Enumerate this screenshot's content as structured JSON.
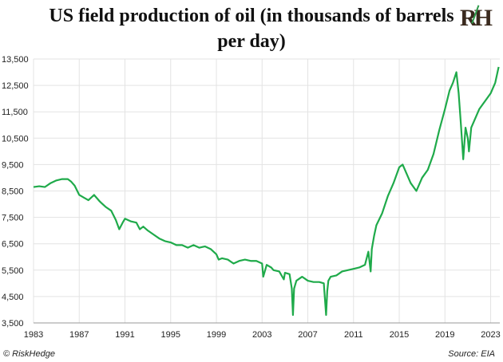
{
  "chart_data": {
    "type": "line",
    "title": "US field production of oil (in thousands of barrels per day)",
    "xlabel": "",
    "ylabel": "",
    "x_ticks": [
      "1983",
      "1987",
      "1991",
      "1995",
      "1999",
      "2003",
      "2007",
      "2011",
      "2015",
      "2019",
      "2023"
    ],
    "y_ticks": [
      "3,500",
      "4,500",
      "5,500",
      "6,500",
      "7,500",
      "8,500",
      "9,500",
      "10,500",
      "11,500",
      "12,500",
      "13,500"
    ],
    "xlim": [
      1983,
      2023.8
    ],
    "ylim": [
      3500,
      13500
    ],
    "grid": true,
    "line_color": "#1faa4a",
    "series": [
      {
        "name": "",
        "x": [
          1983,
          1983.5,
          1984,
          1984.5,
          1985,
          1985.5,
          1986,
          1986.3,
          1986.6,
          1987,
          1987.4,
          1987.8,
          1988.3,
          1988.8,
          1989.3,
          1989.8,
          1990.2,
          1990.5,
          1990.8,
          1991,
          1991.5,
          1992,
          1992.3,
          1992.6,
          1993,
          1993.5,
          1994,
          1994.5,
          1995,
          1995.5,
          1996,
          1996.5,
          1997,
          1997.5,
          1998,
          1998.5,
          1999,
          1999.2,
          1999.5,
          2000,
          2000.5,
          2001,
          2001.5,
          2002,
          2002.5,
          2003,
          2003.1,
          2003.4,
          2003.8,
          2004,
          2004.5,
          2004.9,
          2005,
          2005.4,
          2005.6,
          2005.7,
          2005.8,
          2006,
          2006.5,
          2007,
          2007.5,
          2008,
          2008.4,
          2008.6,
          2008.7,
          2008.8,
          2009,
          2009.5,
          2010,
          2010.5,
          2011,
          2011.5,
          2012,
          2012.3,
          2012.5,
          2012.6,
          2012.8,
          2013,
          2013.5,
          2014,
          2014.5,
          2015,
          2015.3,
          2015.5,
          2016,
          2016.5,
          2017,
          2017.5,
          2018,
          2018.5,
          2019,
          2019.4,
          2019.7,
          2020,
          2020.2,
          2020.4,
          2020.6,
          2020.8,
          2021,
          2021.1,
          2021.3,
          2021.6,
          2022,
          2022.5,
          2023,
          2023.4,
          2023.7
        ],
        "values": [
          8650,
          8680,
          8650,
          8800,
          8900,
          8950,
          8950,
          8850,
          8700,
          8350,
          8250,
          8150,
          8350,
          8100,
          7900,
          7750,
          7400,
          7050,
          7300,
          7450,
          7350,
          7300,
          7050,
          7150,
          7000,
          6850,
          6700,
          6600,
          6550,
          6450,
          6450,
          6350,
          6450,
          6350,
          6400,
          6300,
          6100,
          5900,
          5950,
          5900,
          5750,
          5850,
          5900,
          5850,
          5850,
          5750,
          5250,
          5700,
          5600,
          5500,
          5450,
          5150,
          5400,
          5350,
          4800,
          3800,
          4800,
          5100,
          5250,
          5100,
          5050,
          5050,
          5000,
          3800,
          4700,
          5100,
          5250,
          5300,
          5450,
          5500,
          5550,
          5600,
          5700,
          6200,
          5450,
          6300,
          6800,
          7200,
          7650,
          8300,
          8800,
          9400,
          9500,
          9300,
          8800,
          8500,
          9000,
          9300,
          9900,
          10800,
          11600,
          12300,
          12600,
          13000,
          12200,
          11000,
          9700,
          10900,
          10500,
          10000,
          10900,
          11200,
          11600,
          11900,
          12200,
          12600,
          13200
        ]
      }
    ]
  },
  "logo_text": "RH",
  "footer": {
    "source": "Source: EIA",
    "credit": "© RiskHedge"
  }
}
